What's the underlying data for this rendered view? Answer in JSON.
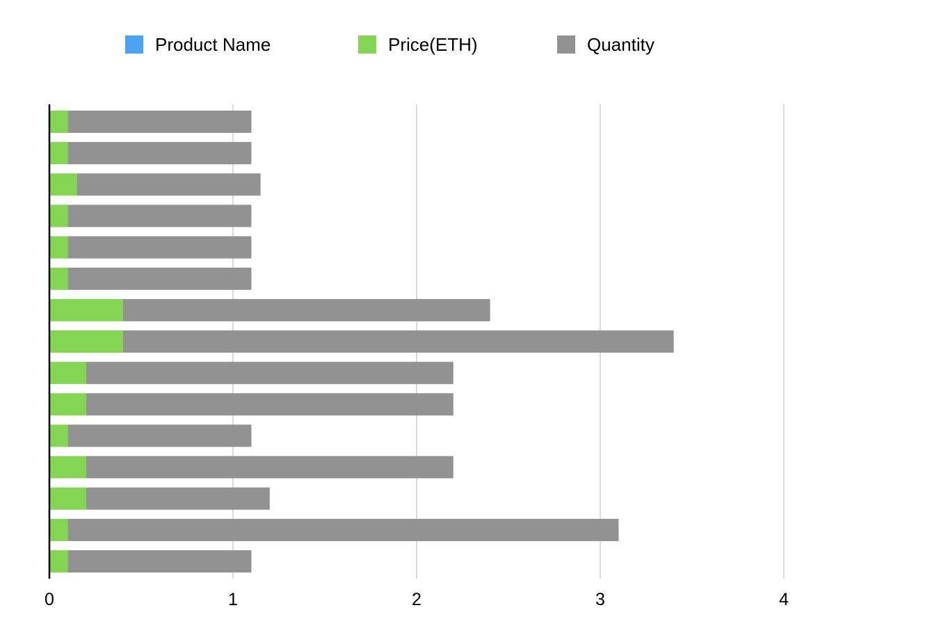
{
  "chart_data": {
    "type": "bar",
    "orientation": "horizontal",
    "stacked": true,
    "title": "",
    "xlabel": "",
    "ylabel": "",
    "xlim": [
      0,
      4.5
    ],
    "xticks": [
      "0",
      "1",
      "2",
      "3",
      "4"
    ],
    "grid": true,
    "legend_position": "top",
    "legend": [
      "Product Name",
      "Price(ETH)",
      "Quantity"
    ],
    "colors": {
      "Product Name": "#4aa3f5",
      "Price(ETH)": "#83d553",
      "Quantity": "#929292"
    },
    "series": [
      {
        "name": "Product Name",
        "values": [
          0,
          0,
          0,
          0,
          0,
          0,
          0,
          0,
          0,
          0,
          0,
          0,
          0,
          0,
          0
        ]
      },
      {
        "name": "Price(ETH)",
        "values": [
          0.1,
          0.1,
          0.15,
          0.1,
          0.1,
          0.1,
          0.4,
          0.4,
          0.2,
          0.2,
          0.1,
          0.2,
          0.2,
          0.1,
          0.1
        ]
      },
      {
        "name": "Quantity",
        "values": [
          1,
          1,
          1,
          1,
          1,
          1,
          2,
          3,
          2,
          2,
          1,
          2,
          1,
          3,
          1
        ]
      }
    ]
  }
}
